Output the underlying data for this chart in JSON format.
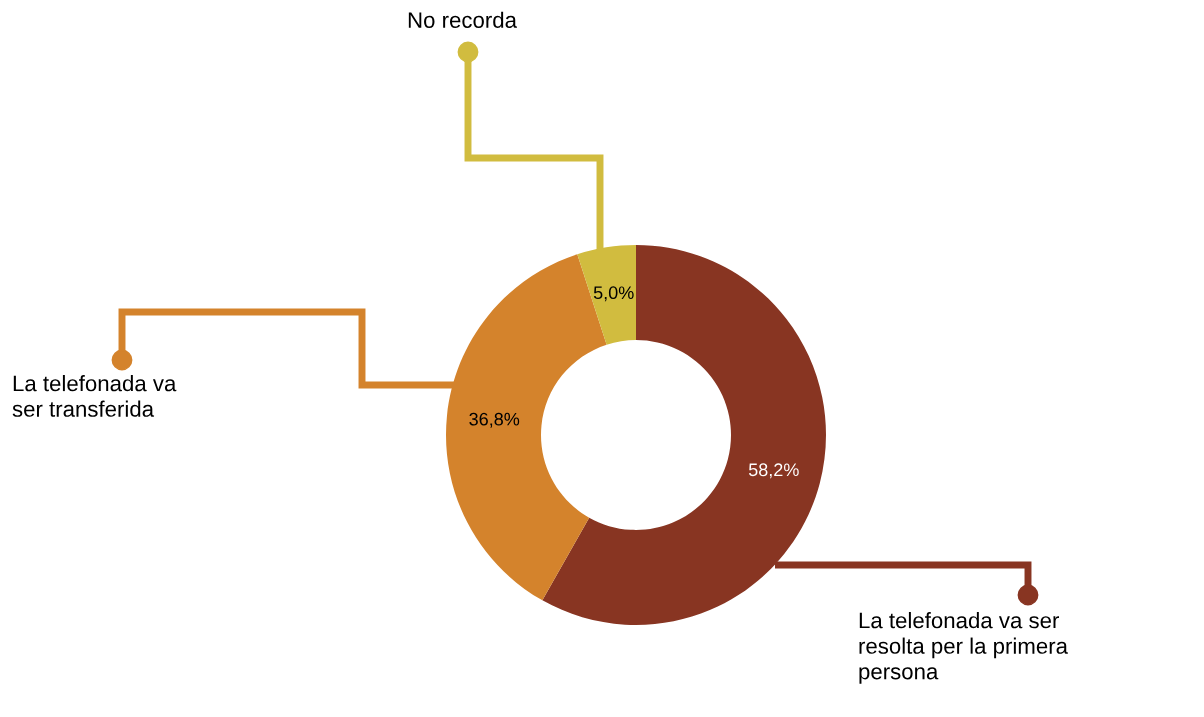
{
  "chart_data": {
    "type": "donut",
    "categories": [
      "La telefonada va ser resolta per la primera persona",
      "La telefonada va ser transferida",
      "No recorda"
    ],
    "values": [
      58.2,
      36.8,
      5.0
    ],
    "colors": [
      "#883522",
      "#d4832c",
      "#d1bc3f"
    ],
    "value_labels": [
      "58,2%",
      "36,8%",
      "5,0%"
    ],
    "legend": "bottom"
  }
}
